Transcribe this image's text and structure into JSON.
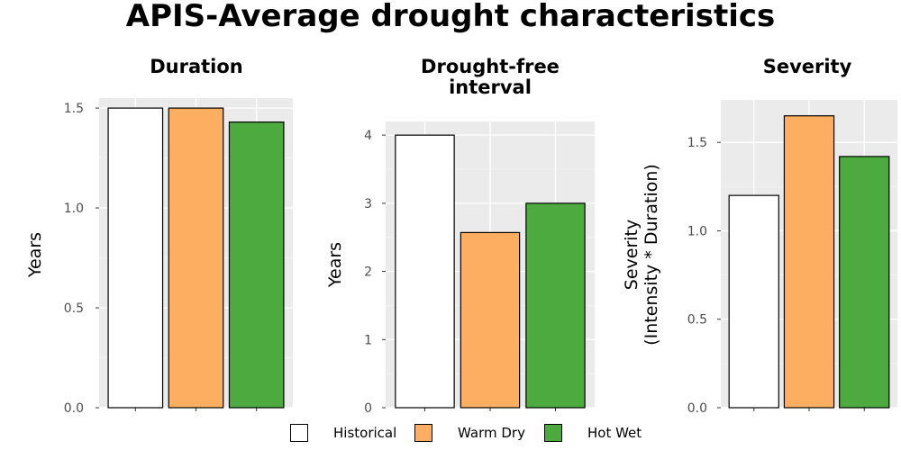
{
  "title": "APIS-Average drought characteristics",
  "legend": {
    "items": [
      {
        "label": "Historical",
        "color": "#ffffff"
      },
      {
        "label": "Warm Dry",
        "color": "#fdae61"
      },
      {
        "label": "Hot Wet",
        "color": "#4daa3f"
      }
    ]
  },
  "chart_data": [
    {
      "type": "bar",
      "title": "Duration",
      "ylabel": "Years",
      "categories": [
        "Historical",
        "Warm Dry",
        "Hot Wet"
      ],
      "values": [
        1.5,
        1.5,
        1.43
      ],
      "ylim": [
        0,
        1.55
      ],
      "yticks": [
        0.0,
        0.5,
        1.0,
        1.5
      ],
      "ytick_labels": [
        "0.0",
        "0.5",
        "1.0",
        "1.5"
      ],
      "grid": true
    },
    {
      "type": "bar",
      "title": "Drought-free interval",
      "title_lines": [
        "Drought-free",
        "interval"
      ],
      "ylabel": "Years",
      "categories": [
        "Historical",
        "Warm Dry",
        "Hot Wet"
      ],
      "values": [
        4.0,
        2.57,
        3.0
      ],
      "ylim": [
        0,
        4.2
      ],
      "yticks": [
        0,
        1,
        2,
        3,
        4
      ],
      "ytick_labels": [
        "0",
        "1",
        "2",
        "3",
        "4"
      ],
      "grid": true
    },
    {
      "type": "bar",
      "title": "Severity",
      "ylabel": "Severity (Intensity * Duration)",
      "ylabel_lines": [
        "Severity",
        "(Intensity * Duration)"
      ],
      "categories": [
        "Historical",
        "Warm Dry",
        "Hot Wet"
      ],
      "values": [
        1.2,
        1.65,
        1.42
      ],
      "ylim": [
        0,
        1.74
      ],
      "yticks": [
        0.0,
        0.5,
        1.0,
        1.5
      ],
      "ytick_labels": [
        "0.0",
        "0.5",
        "1.0",
        "1.5"
      ],
      "grid": true
    }
  ]
}
